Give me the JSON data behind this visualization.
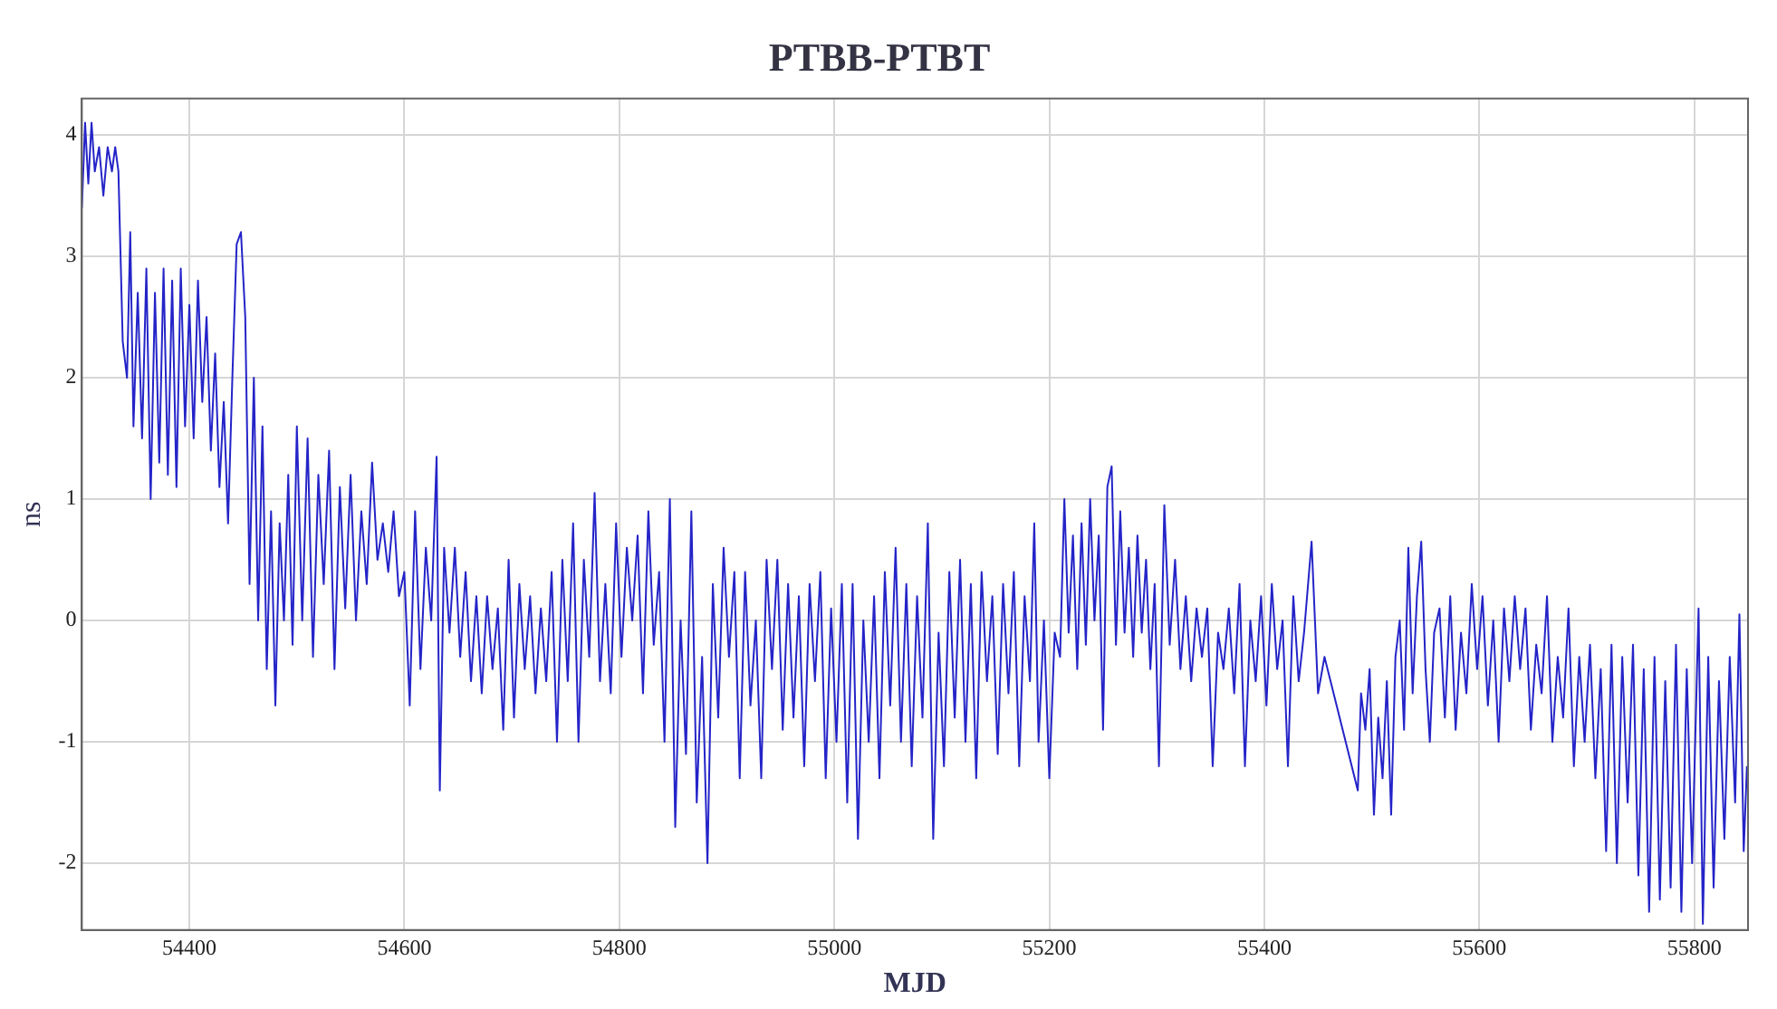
{
  "chart_data": {
    "type": "line",
    "title": "PTBB-PTBT",
    "xlabel": "MJD",
    "ylabel": "ns",
    "color": "#2424c8",
    "grid": true,
    "marker": "none",
    "xlim": [
      54300,
      55850
    ],
    "xticks": [
      54400,
      54600,
      54800,
      55000,
      55200,
      55400,
      55600,
      55800
    ],
    "ylim": [
      -2.55,
      4.3
    ],
    "yticks": [
      -2,
      -1,
      0,
      1,
      2,
      3,
      4
    ],
    "x": [
      54300,
      54303,
      54306,
      54309,
      54312,
      54316,
      54320,
      54324,
      54328,
      54331,
      54334,
      54338,
      54342,
      54345,
      54348,
      54352,
      54356,
      54360,
      54364,
      54368,
      54372,
      54376,
      54380,
      54384,
      54388,
      54392,
      54396,
      54400,
      54404,
      54408,
      54412,
      54416,
      54420,
      54424,
      54428,
      54432,
      54436,
      54440,
      54444,
      54448,
      54452,
      54456,
      54460,
      54464,
      54468,
      54472,
      54476,
      54480,
      54484,
      54488,
      54492,
      54496,
      54500,
      54505,
      54510,
      54515,
      54520,
      54525,
      54530,
      54535,
      54540,
      54545,
      54550,
      54555,
      54560,
      54565,
      54570,
      54575,
      54580,
      54585,
      54590,
      54595,
      54600,
      54605,
      54610,
      54615,
      54620,
      54625,
      54630,
      54633,
      54637,
      54642,
      54647,
      54652,
      54657,
      54662,
      54667,
      54672,
      54677,
      54682,
      54687,
      54692,
      54697,
      54702,
      54707,
      54712,
      54717,
      54722,
      54727,
      54732,
      54737,
      54742,
      54747,
      54752,
      54757,
      54762,
      54767,
      54772,
      54777,
      54782,
      54787,
      54792,
      54797,
      54802,
      54807,
      54812,
      54817,
      54822,
      54827,
      54832,
      54837,
      54842,
      54847,
      54852,
      54857,
      54862,
      54867,
      54872,
      54877,
      54882,
      54887,
      54892,
      54897,
      54902,
      54907,
      54912,
      54917,
      54922,
      54927,
      54932,
      54937,
      54942,
      54947,
      54952,
      54957,
      54962,
      54967,
      54972,
      54977,
      54982,
      54987,
      54992,
      54997,
      55002,
      55007,
      55012,
      55017,
      55022,
      55027,
      55032,
      55037,
      55042,
      55047,
      55052,
      55057,
      55062,
      55067,
      55072,
      55077,
      55082,
      55087,
      55092,
      55097,
      55102,
      55107,
      55112,
      55117,
      55122,
      55127,
      55132,
      55137,
      55142,
      55147,
      55152,
      55157,
      55162,
      55167,
      55172,
      55177,
      55182,
      55186,
      55190,
      55195,
      55200,
      55205,
      55210,
      55214,
      55218,
      55222,
      55226,
      55230,
      55234,
      55238,
      55242,
      55246,
      55250,
      55254,
      55258,
      55262,
      55266,
      55270,
      55274,
      55278,
      55282,
      55286,
      55290,
      55294,
      55298,
      55302,
      55307,
      55312,
      55317,
      55322,
      55327,
      55332,
      55337,
      55342,
      55347,
      55352,
      55357,
      55362,
      55367,
      55372,
      55377,
      55382,
      55387,
      55392,
      55397,
      55402,
      55407,
      55412,
      55417,
      55422,
      55427,
      55432,
      55437,
      55444,
      55450,
      55456,
      55487,
      55490,
      55494,
      55498,
      55502,
      55506,
      55510,
      55514,
      55518,
      55522,
      55526,
      55530,
      55534,
      55538,
      55542,
      55546,
      55550,
      55554,
      55558,
      55563,
      55568,
      55573,
      55578,
      55583,
      55588,
      55593,
      55598,
      55603,
      55608,
      55613,
      55618,
      55623,
      55628,
      55633,
      55638,
      55643,
      55648,
      55653,
      55658,
      55663,
      55668,
      55673,
      55678,
      55683,
      55688,
      55693,
      55698,
      55703,
      55708,
      55713,
      55718,
      55723,
      55728,
      55733,
      55738,
      55743,
      55748,
      55753,
      55758,
      55763,
      55768,
      55773,
      55778,
      55783,
      55788,
      55793,
      55798,
      55804,
      55808,
      55813,
      55818,
      55823,
      55828,
      55833,
      55838,
      55842,
      55846,
      55849
    ],
    "values": [
      3.4,
      4.1,
      3.6,
      4.1,
      3.7,
      3.9,
      3.5,
      3.9,
      3.7,
      3.9,
      3.7,
      2.3,
      2.0,
      3.2,
      1.6,
      2.7,
      1.5,
      2.9,
      1.0,
      2.7,
      1.3,
      2.9,
      1.2,
      2.8,
      1.1,
      2.9,
      1.6,
      2.6,
      1.5,
      2.8,
      1.8,
      2.5,
      1.4,
      2.2,
      1.1,
      1.8,
      0.8,
      2.0,
      3.1,
      3.2,
      2.5,
      0.3,
      2.0,
      0.0,
      1.6,
      -0.4,
      0.9,
      -0.7,
      0.8,
      0.0,
      1.2,
      -0.2,
      1.6,
      0.0,
      1.5,
      -0.3,
      1.2,
      0.3,
      1.4,
      -0.4,
      1.1,
      0.1,
      1.2,
      0.0,
      0.9,
      0.3,
      1.3,
      0.5,
      0.8,
      0.4,
      0.9,
      0.2,
      0.4,
      -0.7,
      0.9,
      -0.4,
      0.6,
      0.0,
      1.35,
      -1.4,
      0.6,
      -0.1,
      0.6,
      -0.3,
      0.4,
      -0.5,
      0.2,
      -0.6,
      0.2,
      -0.4,
      0.1,
      -0.9,
      0.5,
      -0.8,
      0.3,
      -0.4,
      0.2,
      -0.6,
      0.1,
      -0.5,
      0.4,
      -1.0,
      0.5,
      -0.5,
      0.8,
      -1.0,
      0.5,
      -0.3,
      1.05,
      -0.5,
      0.3,
      -0.6,
      0.8,
      -0.3,
      0.6,
      0.0,
      0.7,
      -0.6,
      0.9,
      -0.2,
      0.4,
      -1.0,
      1.0,
      -1.7,
      0.0,
      -1.1,
      0.9,
      -1.5,
      -0.3,
      -2.0,
      0.3,
      -0.8,
      0.6,
      -0.3,
      0.4,
      -1.3,
      0.4,
      -0.7,
      0.0,
      -1.3,
      0.5,
      -0.4,
      0.5,
      -0.9,
      0.3,
      -0.8,
      0.2,
      -1.2,
      0.3,
      -0.5,
      0.4,
      -1.3,
      0.1,
      -1.0,
      0.3,
      -1.5,
      0.3,
      -1.8,
      0.0,
      -1.0,
      0.2,
      -1.3,
      0.4,
      -0.7,
      0.6,
      -1.0,
      0.3,
      -1.2,
      0.2,
      -0.8,
      0.8,
      -1.8,
      -0.1,
      -1.2,
      0.4,
      -0.8,
      0.5,
      -1.0,
      0.3,
      -1.3,
      0.4,
      -0.5,
      0.2,
      -1.1,
      0.3,
      -0.6,
      0.4,
      -1.2,
      0.2,
      -0.5,
      0.8,
      -1.0,
      0.0,
      -1.3,
      -0.1,
      -0.3,
      1.0,
      -0.1,
      0.7,
      -0.4,
      0.8,
      -0.2,
      1.0,
      0.0,
      0.7,
      -0.9,
      1.1,
      1.27,
      -0.2,
      0.9,
      -0.1,
      0.6,
      -0.3,
      0.7,
      -0.1,
      0.5,
      -0.4,
      0.3,
      -1.2,
      0.95,
      -0.2,
      0.5,
      -0.4,
      0.2,
      -0.5,
      0.1,
      -0.3,
      0.1,
      -1.2,
      -0.1,
      -0.4,
      0.1,
      -0.6,
      0.3,
      -1.2,
      0.0,
      -0.5,
      0.2,
      -0.7,
      0.3,
      -0.4,
      0.0,
      -1.2,
      0.2,
      -0.5,
      -0.1,
      0.65,
      -0.6,
      -0.3,
      -1.4,
      -0.6,
      -0.9,
      -0.4,
      -1.6,
      -0.8,
      -1.3,
      -0.5,
      -1.6,
      -0.3,
      0.0,
      -0.9,
      0.6,
      -0.6,
      0.2,
      0.65,
      -0.4,
      -1.0,
      -0.1,
      0.1,
      -0.8,
      0.2,
      -0.9,
      -0.1,
      -0.6,
      0.3,
      -0.4,
      0.2,
      -0.7,
      0.0,
      -1.0,
      0.1,
      -0.5,
      0.2,
      -0.4,
      0.1,
      -0.9,
      -0.2,
      -0.6,
      0.2,
      -1.0,
      -0.3,
      -0.8,
      0.1,
      -1.2,
      -0.3,
      -1.0,
      -0.2,
      -1.3,
      -0.4,
      -1.9,
      -0.2,
      -2.0,
      -0.3,
      -1.5,
      -0.2,
      -2.1,
      -0.4,
      -2.4,
      -0.3,
      -2.3,
      -0.5,
      -2.2,
      -0.2,
      -2.4,
      -0.4,
      -2.0,
      0.1,
      -2.5,
      -0.3,
      -2.2,
      -0.5,
      -1.8,
      -0.3,
      -1.5,
      0.05,
      -1.9,
      -1.2
    ]
  }
}
